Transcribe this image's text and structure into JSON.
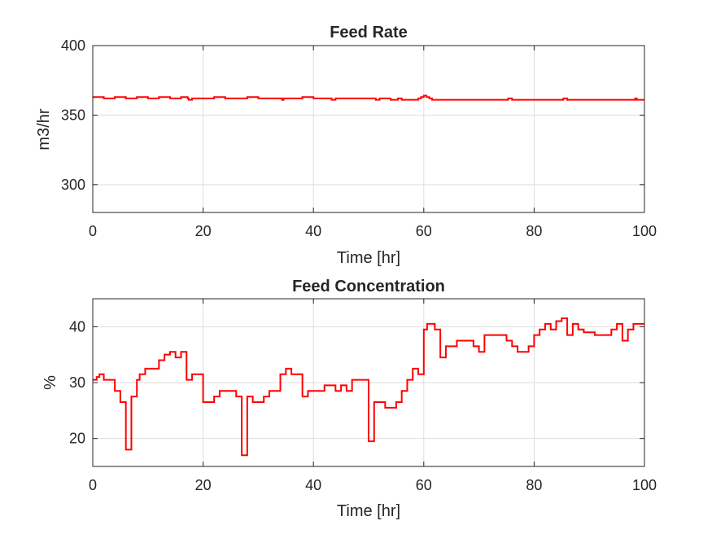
{
  "chart_data": [
    {
      "type": "line",
      "title": "Feed Rate",
      "xlabel": "Time [hr]",
      "ylabel": "m3/hr",
      "xlim": [
        0,
        100
      ],
      "ylim": [
        280,
        400
      ],
      "xticks": [
        0,
        20,
        40,
        60,
        80,
        100
      ],
      "yticks": [
        300,
        350,
        400
      ],
      "grid": true,
      "color": "#ff0000",
      "series": [
        {
          "x": [
            0,
            2,
            4,
            6,
            8,
            10,
            12,
            14,
            16,
            17.2,
            17.4,
            18,
            20,
            22,
            24,
            26,
            28,
            30,
            32,
            34,
            34.3,
            34.6,
            36,
            38,
            40,
            42,
            43,
            43.3,
            44,
            46,
            48,
            50,
            51,
            51.3,
            52,
            54,
            55,
            55.3,
            56,
            58,
            59,
            59.5,
            60,
            60.5,
            61,
            61.5,
            62,
            64,
            66,
            68,
            70,
            72,
            74,
            75,
            75.3,
            76,
            78,
            80,
            82,
            84,
            85,
            85.3,
            86,
            88,
            90,
            92,
            94,
            96,
            98,
            98.3,
            98.6,
            100
          ],
          "y": [
            363,
            362,
            363,
            362,
            363,
            362,
            363,
            362,
            363,
            362,
            361,
            362,
            362,
            363,
            362,
            362,
            363,
            362,
            362,
            362,
            361,
            362,
            362,
            363,
            362,
            362,
            362,
            361,
            362,
            362,
            362,
            362,
            362,
            361,
            362,
            361,
            361,
            362,
            361,
            361,
            362,
            363,
            364,
            363,
            362,
            361,
            361,
            361,
            361,
            361,
            361,
            361,
            361,
            361,
            362,
            361,
            361,
            361,
            361,
            361,
            361,
            362,
            361,
            361,
            361,
            361,
            361,
            361,
            361,
            362,
            361,
            361
          ]
        }
      ]
    },
    {
      "type": "line",
      "title": "Feed Concentration",
      "xlabel": "Time [hr]",
      "ylabel": "%",
      "xlim": [
        0,
        100
      ],
      "ylim": [
        15,
        45
      ],
      "xticks": [
        0,
        20,
        40,
        60,
        80,
        100
      ],
      "yticks": [
        20,
        30,
        40
      ],
      "grid": true,
      "color": "#ff0000",
      "series": [
        {
          "x": [
            0,
            0.7,
            1.2,
            2,
            4,
            5,
            6,
            6.7,
            7,
            8,
            8.5,
            9.5,
            10,
            11,
            12,
            13,
            14,
            15,
            16,
            17,
            18,
            20,
            22,
            23,
            24,
            26,
            27,
            27.5,
            28,
            29,
            30,
            31,
            32,
            34,
            35,
            36,
            38,
            39,
            40,
            42,
            43,
            44,
            45,
            46,
            47,
            48,
            50,
            51,
            52,
            53,
            54,
            55,
            56,
            57,
            58,
            59,
            60,
            60.6,
            61,
            62,
            63,
            64,
            66,
            67,
            69,
            70,
            71,
            74,
            75,
            76,
            77,
            79,
            80,
            81,
            82,
            83,
            84,
            85,
            86,
            87,
            88,
            89,
            91,
            93,
            94,
            95,
            96,
            97,
            98,
            100
          ],
          "y": [
            30.5,
            31,
            31.5,
            30.5,
            28.5,
            26.5,
            18,
            18,
            27.5,
            30.5,
            31.5,
            32.5,
            32.5,
            32.5,
            34,
            35,
            35.5,
            34.5,
            35.5,
            30.5,
            31.5,
            26.5,
            27.5,
            28.5,
            28.5,
            27.5,
            17,
            17,
            27.5,
            26.5,
            26.5,
            27.5,
            28.5,
            31.5,
            32.5,
            31.5,
            27.5,
            28.5,
            28.5,
            29.5,
            29.5,
            28.5,
            29.5,
            28.5,
            30.5,
            30.5,
            19.5,
            26.5,
            26.5,
            25.5,
            25.5,
            26.5,
            28.5,
            30.5,
            32.5,
            31.5,
            39.5,
            40.5,
            40.5,
            39.5,
            34.5,
            36.5,
            37.5,
            37.5,
            36.5,
            35.5,
            38.5,
            38.5,
            37.5,
            36.5,
            35.5,
            36.5,
            38.5,
            39.5,
            40.5,
            39.5,
            41,
            41.5,
            38.5,
            40.5,
            39.5,
            39,
            38.5,
            38.5,
            39.5,
            40.5,
            37.5,
            39.5,
            40.5,
            40.5
          ]
        }
      ]
    }
  ]
}
